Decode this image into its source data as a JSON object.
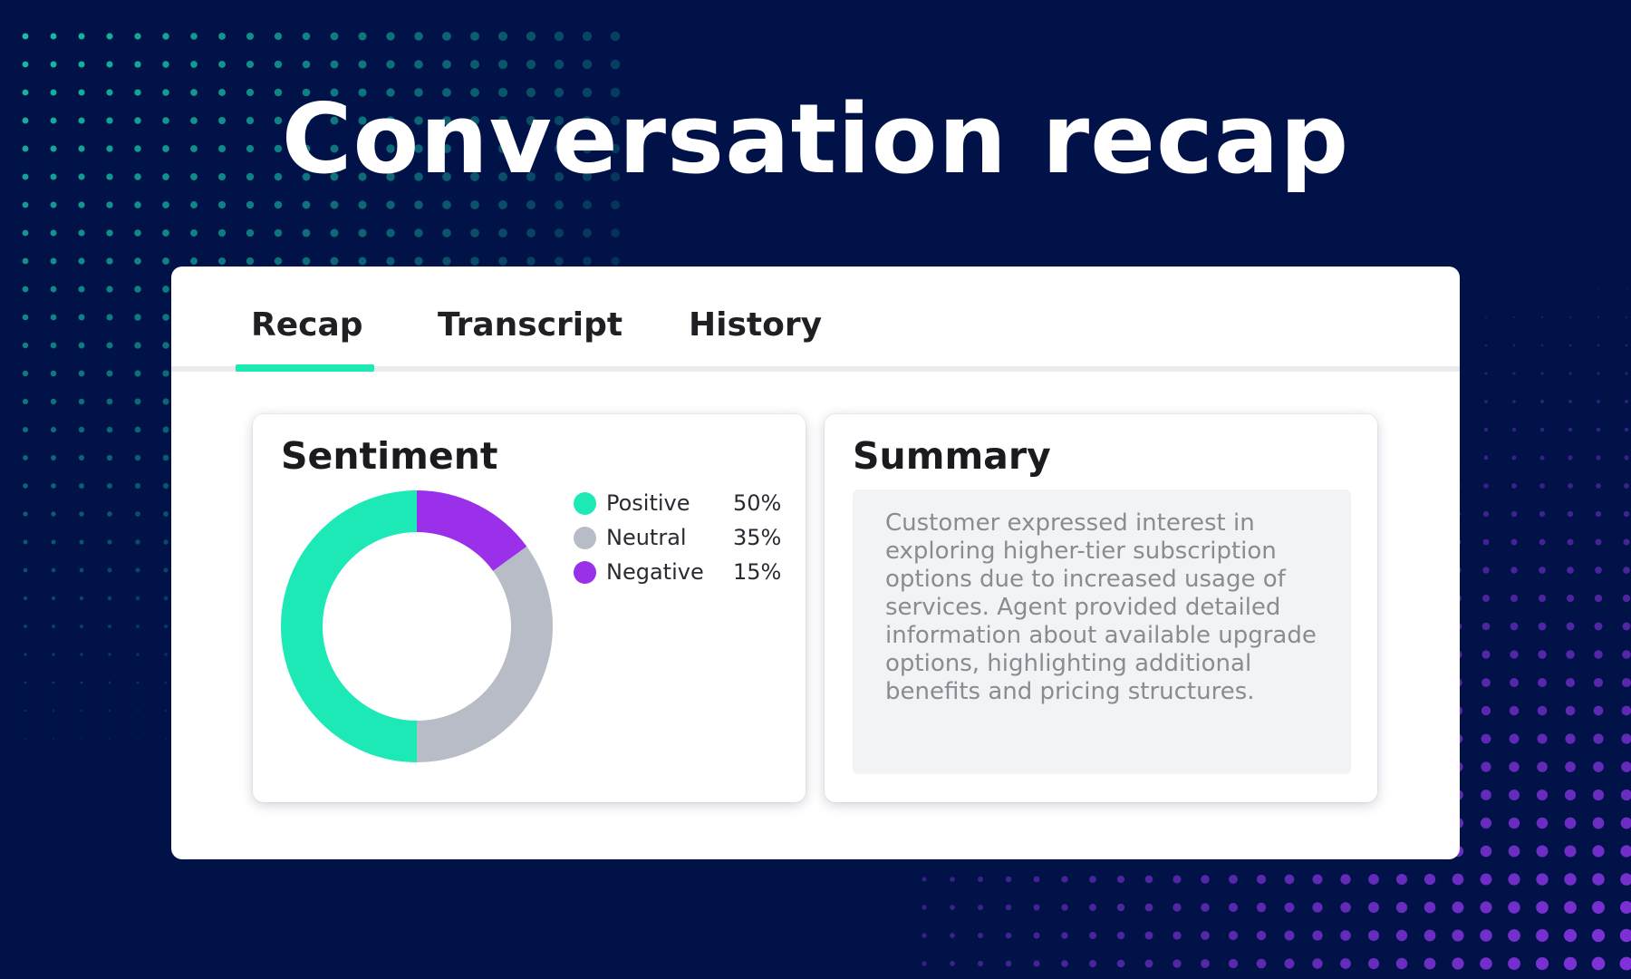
{
  "hero": {
    "title": "Conversation recap"
  },
  "tabs": [
    {
      "label": "Recap",
      "active": true
    },
    {
      "label": "Transcript",
      "active": false
    },
    {
      "label": "History",
      "active": false
    }
  ],
  "sentiment": {
    "title": "Sentiment",
    "legend": [
      {
        "label": "Positive",
        "value": "50%",
        "color": "#1de9b6"
      },
      {
        "label": "Neutral",
        "value": "35%",
        "color": "#b8bcc6"
      },
      {
        "label": "Negative",
        "value": "15%",
        "color": "#9b30ea"
      }
    ]
  },
  "summary": {
    "title": "Summary",
    "text": "Customer expressed interest in exploring higher-tier subscription options due to increased usage of services. Agent provided detailed information about available upgrade options, highlighting additional benefits and pricing structures."
  },
  "chart_data": {
    "type": "pie",
    "title": "Sentiment",
    "categories": [
      "Positive",
      "Neutral",
      "Negative"
    ],
    "values": [
      50,
      35,
      15
    ],
    "colors": [
      "#1de9b6",
      "#b8bcc6",
      "#9b30ea"
    ],
    "legend": "right"
  },
  "colors": {
    "background": "#011248",
    "accent": "#1de9b6",
    "purple": "#9b30ea"
  }
}
